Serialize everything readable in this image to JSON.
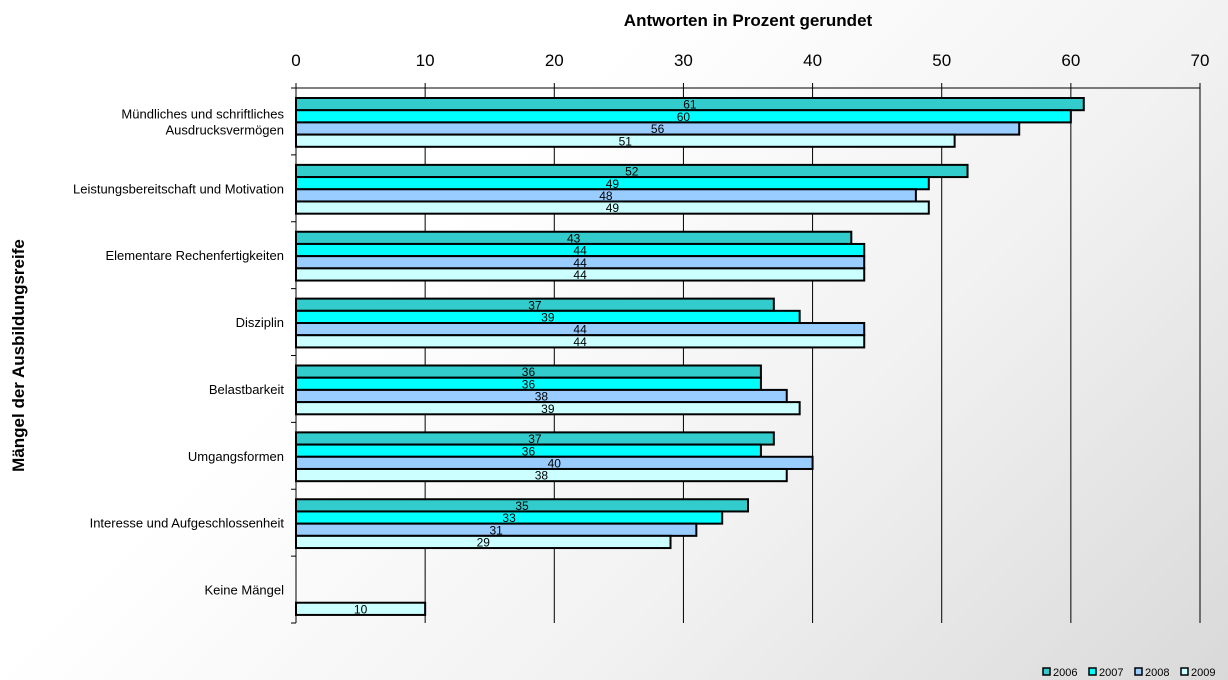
{
  "chart_data": {
    "type": "bar",
    "orientation": "horizontal",
    "title": "Antworten in Prozent gerundet",
    "xlabel": "Antworten in Prozent gerundet",
    "ylabel": "Mängel der Ausbildungsreife",
    "xlim": [
      0,
      70
    ],
    "xticks": [
      0,
      10,
      20,
      30,
      40,
      50,
      60,
      70
    ],
    "grid": "vertical",
    "legend_position": "bottom-right",
    "categories": [
      [
        "Mündliches und schriftliches",
        "Ausdrucksvermögen"
      ],
      [
        "Leistungsbereitschaft und Motivation"
      ],
      [
        "Elementare Rechenfertigkeiten"
      ],
      [
        "Disziplin"
      ],
      [
        "Belastbarkeit"
      ],
      [
        "Umgangsformen"
      ],
      [
        "Interesse und Aufgeschlossenheit"
      ],
      [
        "Keine Mängel"
      ]
    ],
    "series": [
      {
        "name": "2006",
        "color": "#33cccc",
        "values": [
          61,
          52,
          43,
          37,
          36,
          37,
          35,
          null
        ]
      },
      {
        "name": "2007",
        "color": "#00ffff",
        "values": [
          60,
          49,
          44,
          39,
          36,
          36,
          33,
          null
        ]
      },
      {
        "name": "2008",
        "color": "#99ccff",
        "values": [
          56,
          48,
          44,
          44,
          38,
          40,
          31,
          null
        ]
      },
      {
        "name": "2009",
        "color": "#ccffff",
        "values": [
          51,
          49,
          44,
          44,
          39,
          38,
          29,
          10
        ]
      }
    ]
  }
}
